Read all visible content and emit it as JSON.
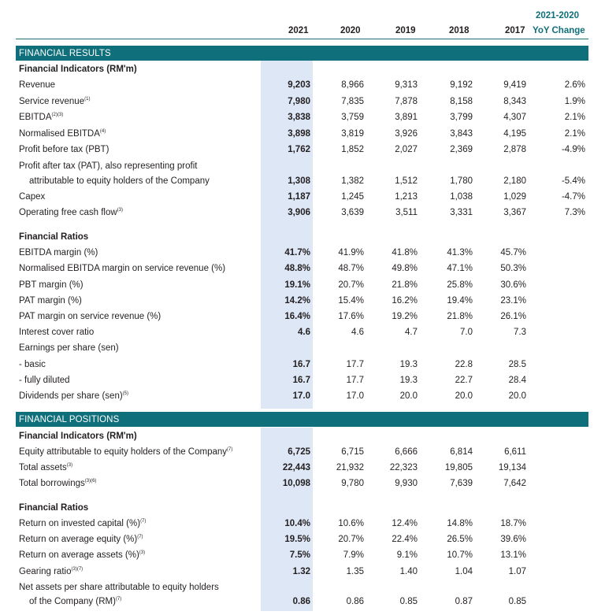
{
  "header": {
    "years": [
      "2021",
      "2020",
      "2019",
      "2018",
      "2017"
    ],
    "change_top": "2021-2020",
    "change_bottom": "YoY Change"
  },
  "sections": {
    "results_title": "FINANCIAL RESULTS",
    "positions_title": "FINANCIAL POSITIONS"
  },
  "rows": [
    {
      "label": "Financial Indicators (RM'm)",
      "bold": true
    },
    {
      "label": "Revenue",
      "values": [
        "9,203",
        "8,966",
        "9,313",
        "9,192",
        "9,419"
      ],
      "change": "2.6%"
    },
    {
      "label": "Service revenue",
      "note": "(1)",
      "values": [
        "7,980",
        "7,835",
        "7,878",
        "8,158",
        "8,343"
      ],
      "change": "1.9%"
    },
    {
      "label": "EBITDA",
      "note": "(2)(3)",
      "values": [
        "3,838",
        "3,759",
        "3,891",
        "3,799",
        "4,307"
      ],
      "change": "2.1%"
    },
    {
      "label": "Normalised EBITDA",
      "note": "(4)",
      "values": [
        "3,898",
        "3,819",
        "3,926",
        "3,843",
        "4,195"
      ],
      "change": "2.1%"
    },
    {
      "label": "Profit before tax (PBT)",
      "values": [
        "1,762",
        "1,852",
        "2,027",
        "2,369",
        "2,878"
      ],
      "change": "-4.9%"
    },
    {
      "label": "Profit after tax (PAT), also representing profit"
    },
    {
      "label": "attributable to equity holders of the Company",
      "indent": true,
      "values": [
        "1,308",
        "1,382",
        "1,512",
        "1,780",
        "2,180"
      ],
      "change": "-5.4%"
    },
    {
      "label": "Capex",
      "values": [
        "1,187",
        "1,245",
        "1,213",
        "1,038",
        "1,029"
      ],
      "change": "-4.7%"
    },
    {
      "label": "Operating free cash flow",
      "note": "(3)",
      "values": [
        "3,906",
        "3,639",
        "3,511",
        "3,331",
        "3,367"
      ],
      "change": "7.3%"
    },
    {
      "label": "Financial Ratios",
      "bold": true
    },
    {
      "label": "EBITDA margin (%)",
      "values": [
        "41.7%",
        "41.9%",
        "41.8%",
        "41.3%",
        "45.7%"
      ]
    },
    {
      "label": "Normalised EBITDA margin on service revenue (%)",
      "values": [
        "48.8%",
        "48.7%",
        "49.8%",
        "47.1%",
        "50.3%"
      ]
    },
    {
      "label": "PBT margin (%)",
      "values": [
        "19.1%",
        "20.7%",
        "21.8%",
        "25.8%",
        "30.6%"
      ]
    },
    {
      "label": "PAT margin (%)",
      "values": [
        "14.2%",
        "15.4%",
        "16.2%",
        "19.4%",
        "23.1%"
      ]
    },
    {
      "label": "PAT margin on service revenue (%)",
      "values": [
        "16.4%",
        "17.6%",
        "19.2%",
        "21.8%",
        "26.1%"
      ]
    },
    {
      "label": "Interest cover ratio",
      "values": [
        "4.6",
        "4.6",
        "4.7",
        "7.0",
        "7.3"
      ]
    },
    {
      "label": "Earnings per share (sen)"
    },
    {
      "label": "- basic",
      "values": [
        "16.7",
        "17.7",
        "19.3",
        "22.8",
        "28.5"
      ]
    },
    {
      "label": "- fully diluted",
      "values": [
        "16.7",
        "17.7",
        "19.3",
        "22.7",
        "28.4"
      ]
    },
    {
      "label": "Dividends per share (sen)",
      "note": "(5)",
      "values": [
        "17.0",
        "17.0",
        "20.0",
        "20.0",
        "20.0"
      ]
    },
    {
      "label": "Financial Indicators (RM'm)",
      "bold": true
    },
    {
      "label": "Equity attributable to equity holders of the Company",
      "note": "(7)",
      "values": [
        "6,725",
        "6,715",
        "6,666",
        "6,814",
        "6,611"
      ]
    },
    {
      "label": "Total assets",
      "note": "(3)",
      "values": [
        "22,443",
        "21,932",
        "22,323",
        "19,805",
        "19,134"
      ]
    },
    {
      "label": "Total borrowings",
      "note": "(3)(6)",
      "values": [
        "10,098",
        "9,780",
        "9,930",
        "7,639",
        "7,642"
      ]
    },
    {
      "label": "Financial Ratios",
      "bold": true
    },
    {
      "label": "Return on invested capital (%)",
      "note": "(7)",
      "values": [
        "10.4%",
        "10.6%",
        "12.4%",
        "14.8%",
        "18.7%"
      ]
    },
    {
      "label": "Return on average equity (%)",
      "note": "(7)",
      "values": [
        "19.5%",
        "20.7%",
        "22.4%",
        "26.5%",
        "39.6%"
      ]
    },
    {
      "label": "Return on average assets (%)",
      "note": "(3)",
      "values": [
        "7.5%",
        "7.9%",
        "9.1%",
        "10.7%",
        "13.1%"
      ]
    },
    {
      "label": "Gearing ratio",
      "note": "(3)(7)",
      "values": [
        "1.32",
        "1.35",
        "1.40",
        "1.04",
        "1.07"
      ]
    },
    {
      "label": "Net assets per share attributable to equity holders"
    },
    {
      "label": "of the Company (RM)",
      "note": "(7)",
      "indent": true,
      "values": [
        "0.86",
        "0.86",
        "0.85",
        "0.87",
        "0.85"
      ]
    }
  ]
}
